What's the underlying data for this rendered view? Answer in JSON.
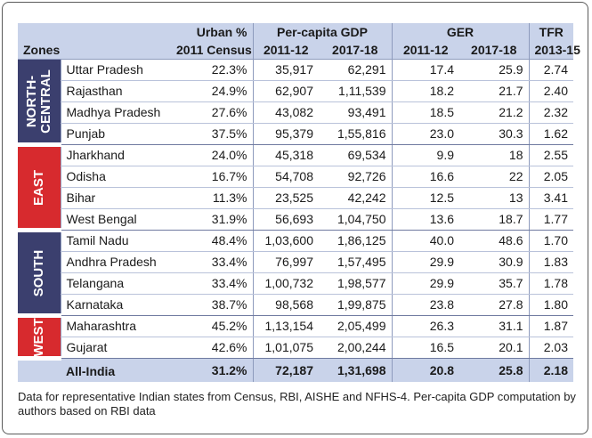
{
  "headers": {
    "zones": "Zones",
    "urban": "Urban %",
    "urban_sub": "2011 Census",
    "gdp": "Per-capita GDP",
    "gdp_sub1": "2011-12",
    "gdp_sub2": "2017-18",
    "ger": "GER",
    "ger_sub1": "2011-12",
    "ger_sub2": "2017-18",
    "tfr": "TFR",
    "tfr_sub": "2013-15"
  },
  "zones": [
    {
      "name": "NORTH-CENTRAL",
      "label_lines": [
        "NORTH-",
        "CENTRAL"
      ],
      "color": "#3b3f6e",
      "rows": [
        {
          "state": "Uttar Pradesh",
          "urban": "22.3%",
          "gdp_2011": "35,917",
          "gdp_2017": "62,291",
          "ger_2011": "17.4",
          "ger_2017": "25.9",
          "tfr": "2.74"
        },
        {
          "state": "Rajasthan",
          "urban": "24.9%",
          "gdp_2011": "62,907",
          "gdp_2017": "1,11,539",
          "ger_2011": "18.2",
          "ger_2017": "21.7",
          "tfr": "2.40"
        },
        {
          "state": "Madhya Pradesh",
          "urban": "27.6%",
          "gdp_2011": "43,082",
          "gdp_2017": "93,491",
          "ger_2011": "18.5",
          "ger_2017": "21.2",
          "tfr": "2.32"
        },
        {
          "state": "Punjab",
          "urban": "37.5%",
          "gdp_2011": "95,379",
          "gdp_2017": "1,55,816",
          "ger_2011": "23.0",
          "ger_2017": "30.3",
          "tfr": "1.62"
        }
      ]
    },
    {
      "name": "EAST",
      "label_lines": [
        "EAST"
      ],
      "color": "#d72a2e",
      "rows": [
        {
          "state": "Jharkhand",
          "urban": "24.0%",
          "gdp_2011": "45,318",
          "gdp_2017": "69,534",
          "ger_2011": "9.9",
          "ger_2017": "18",
          "tfr": "2.55"
        },
        {
          "state": "Odisha",
          "urban": "16.7%",
          "gdp_2011": "54,708",
          "gdp_2017": "92,726",
          "ger_2011": "16.6",
          "ger_2017": "22",
          "tfr": "2.05"
        },
        {
          "state": "Bihar",
          "urban": "11.3%",
          "gdp_2011": "23,525",
          "gdp_2017": "42,242",
          "ger_2011": "12.5",
          "ger_2017": "13",
          "tfr": "3.41"
        },
        {
          "state": "West Bengal",
          "urban": "31.9%",
          "gdp_2011": "56,693",
          "gdp_2017": "1,04,750",
          "ger_2011": "13.6",
          "ger_2017": "18.7",
          "tfr": "1.77"
        }
      ]
    },
    {
      "name": "SOUTH",
      "label_lines": [
        "SOUTH"
      ],
      "color": "#3b3f6e",
      "rows": [
        {
          "state": "Tamil Nadu",
          "urban": "48.4%",
          "gdp_2011": "1,03,600",
          "gdp_2017": "1,86,125",
          "ger_2011": "40.0",
          "ger_2017": "48.6",
          "tfr": "1.70"
        },
        {
          "state": "Andhra Pradesh",
          "urban": "33.4%",
          "gdp_2011": "76,997",
          "gdp_2017": "1,57,495",
          "ger_2011": "29.9",
          "ger_2017": "30.9",
          "tfr": "1.83"
        },
        {
          "state": "Telangana",
          "urban": "33.4%",
          "gdp_2011": "1,00,732",
          "gdp_2017": "1,98,577",
          "ger_2011": "29.9",
          "ger_2017": "35.7",
          "tfr": "1.78"
        },
        {
          "state": "Karnataka",
          "urban": "38.7%",
          "gdp_2011": "98,568",
          "gdp_2017": "1,99,875",
          "ger_2011": "23.8",
          "ger_2017": "27.8",
          "tfr": "1.80"
        }
      ]
    },
    {
      "name": "WEST",
      "label_lines": [
        "WEST"
      ],
      "color": "#d72a2e",
      "rows": [
        {
          "state": "Maharashtra",
          "urban": "45.2%",
          "gdp_2011": "1,13,154",
          "gdp_2017": "2,05,499",
          "ger_2011": "26.3",
          "ger_2017": "31.1",
          "tfr": "1.87"
        },
        {
          "state": "Gujarat",
          "urban": "42.6%",
          "gdp_2011": "1,01,075",
          "gdp_2017": "2,00,244",
          "ger_2011": "16.5",
          "ger_2017": "20.1",
          "tfr": "2.03"
        }
      ]
    }
  ],
  "total": {
    "state": "All-India",
    "urban": "31.2%",
    "gdp_2011": "72,187",
    "gdp_2017": "1,31,698",
    "ger_2011": "20.8",
    "ger_2017": "25.8",
    "tfr": "2.18"
  },
  "footnote": "Data for representative Indian states from Census, RBI, AISHE and NFHS-4. Per-capita GDP computation by authors based on RBI data"
}
